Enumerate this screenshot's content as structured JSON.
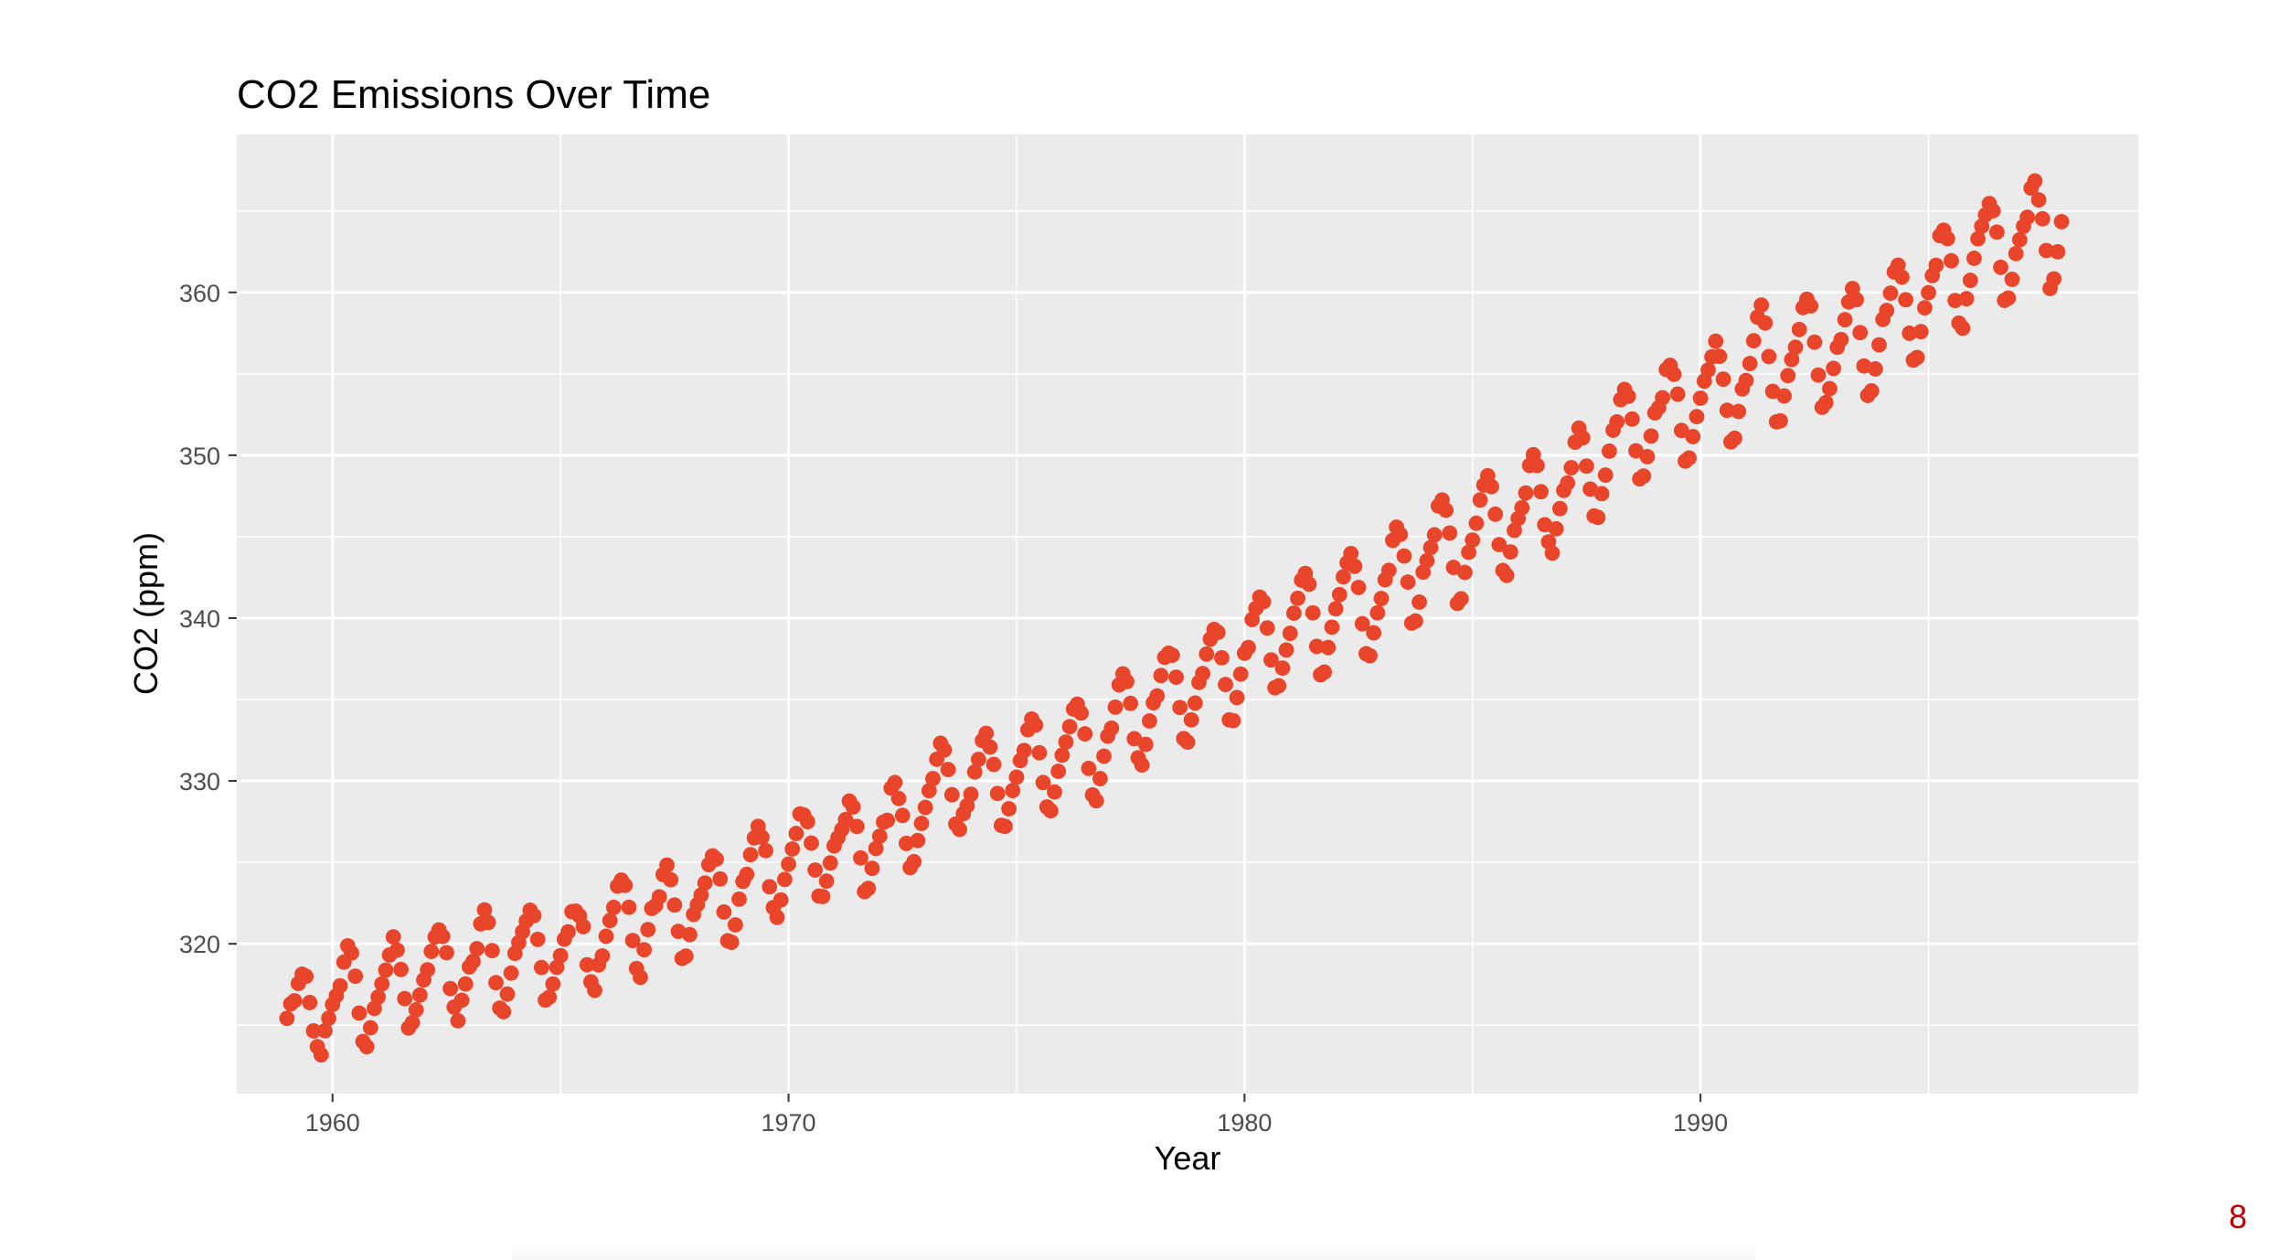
{
  "page": {
    "number": "8"
  },
  "colors": {
    "panel": "#EBEBEB",
    "grid": "#FFFFFF",
    "points": "#E8452B",
    "tick_text": "#4D4D4D",
    "title_text": "#000000",
    "page_number": "#C00000"
  },
  "chart_data": {
    "type": "scatter",
    "title": "CO2 Emissions Over Time",
    "xlabel": "Year",
    "ylabel": "CO2 (ppm)",
    "xlim": [
      1957.9,
      1999.6
    ],
    "ylim": [
      310.8,
      369.7
    ],
    "x_ticks": [
      1960,
      1970,
      1980,
      1990
    ],
    "x_tick_labels": [
      "1960",
      "1970",
      "1980",
      "1990"
    ],
    "x_minor_ticks": [
      1965,
      1975,
      1985,
      1995
    ],
    "y_ticks": [
      320,
      330,
      340,
      350,
      360
    ],
    "y_tick_labels": [
      "320",
      "330",
      "340",
      "350",
      "360"
    ],
    "y_minor_ticks": [
      315,
      325,
      335,
      345,
      355,
      365
    ],
    "grid": true,
    "legend": "none",
    "series": [
      {
        "start_year": 1959.0,
        "step": 0.083333,
        "values": [
          315.42,
          316.31,
          316.5,
          317.56,
          318.13,
          318.0,
          316.39,
          314.65,
          313.68,
          313.18,
          314.66,
          315.43,
          316.27,
          316.81,
          317.42,
          318.87,
          319.87,
          319.43,
          318.01,
          315.74,
          314.0,
          313.68,
          314.84,
          316.03,
          316.73,
          317.54,
          318.38,
          319.31,
          320.42,
          319.61,
          318.42,
          316.63,
          314.83,
          315.16,
          315.94,
          316.85,
          317.78,
          318.4,
          319.53,
          320.42,
          320.85,
          320.45,
          319.45,
          317.25,
          316.11,
          315.27,
          316.53,
          317.53,
          318.58,
          318.92,
          319.7,
          321.22,
          322.08,
          321.31,
          319.58,
          317.61,
          316.05,
          315.83,
          316.91,
          318.2,
          319.41,
          320.07,
          320.74,
          321.4,
          322.06,
          321.73,
          320.27,
          318.54,
          316.54,
          316.71,
          317.53,
          318.55,
          319.27,
          320.28,
          320.73,
          321.97,
          322.0,
          321.71,
          321.05,
          318.71,
          317.66,
          317.14,
          318.7,
          319.25,
          320.46,
          321.43,
          322.23,
          323.54,
          323.91,
          323.59,
          322.24,
          320.2,
          318.48,
          317.94,
          319.63,
          320.87,
          322.17,
          322.34,
          322.88,
          324.25,
          324.83,
          323.93,
          322.38,
          320.76,
          319.1,
          319.24,
          320.56,
          321.8,
          322.4,
          322.99,
          323.73,
          324.86,
          325.4,
          325.2,
          323.98,
          321.95,
          320.18,
          320.09,
          321.16,
          322.74,
          323.83,
          324.26,
          325.47,
          326.5,
          327.21,
          326.54,
          325.72,
          323.5,
          322.22,
          321.62,
          322.69,
          323.95,
          324.89,
          325.82,
          326.77,
          327.97,
          327.91,
          327.5,
          326.18,
          324.53,
          322.93,
          322.9,
          323.85,
          324.96,
          326.01,
          326.51,
          327.01,
          327.62,
          328.76,
          328.4,
          327.2,
          325.27,
          323.2,
          323.4,
          324.63,
          325.85,
          326.6,
          327.47,
          327.58,
          329.56,
          329.9,
          328.92,
          327.88,
          326.16,
          324.68,
          325.04,
          326.34,
          327.39,
          328.37,
          329.4,
          330.14,
          331.33,
          332.31,
          331.9,
          330.7,
          329.15,
          327.35,
          327.02,
          327.99,
          328.48,
          329.18,
          330.55,
          331.32,
          332.48,
          332.92,
          332.08,
          331.01,
          329.23,
          327.27,
          327.21,
          328.29,
          329.41,
          330.23,
          331.25,
          331.87,
          333.14,
          333.8,
          333.43,
          331.73,
          329.9,
          328.4,
          328.17,
          329.32,
          330.59,
          331.58,
          332.39,
          333.33,
          334.41,
          334.71,
          334.17,
          332.89,
          330.77,
          329.14,
          328.78,
          330.14,
          331.52,
          332.75,
          333.24,
          334.53,
          335.9,
          336.57,
          336.1,
          334.76,
          332.59,
          331.42,
          330.98,
          332.24,
          333.68,
          334.8,
          335.22,
          336.47,
          337.59,
          337.84,
          337.72,
          336.37,
          334.51,
          332.6,
          332.38,
          333.75,
          334.78,
          336.05,
          336.59,
          337.79,
          338.71,
          339.3,
          339.12,
          337.56,
          335.92,
          333.75,
          333.7,
          335.12,
          336.56,
          337.84,
          338.19,
          339.91,
          340.6,
          341.29,
          341.0,
          339.39,
          337.43,
          335.72,
          335.84,
          336.93,
          338.04,
          339.06,
          340.3,
          341.21,
          342.33,
          342.74,
          342.08,
          340.32,
          338.26,
          336.52,
          336.68,
          338.19,
          339.44,
          340.57,
          341.44,
          342.53,
          343.39,
          343.96,
          343.18,
          341.88,
          339.65,
          337.81,
          337.69,
          339.09,
          340.32,
          341.2,
          342.35,
          342.93,
          344.77,
          345.58,
          345.14,
          343.81,
          342.21,
          339.69,
          339.82,
          340.98,
          342.82,
          343.52,
          344.33,
          345.11,
          346.88,
          347.25,
          346.62,
          345.22,
          343.11,
          340.9,
          341.18,
          342.8,
          344.04,
          344.79,
          345.82,
          347.25,
          348.17,
          348.74,
          348.07,
          346.38,
          344.51,
          342.92,
          342.62,
          344.06,
          345.38,
          346.11,
          346.78,
          347.68,
          349.37,
          350.03,
          349.37,
          347.76,
          345.73,
          344.68,
          343.99,
          345.48,
          346.72,
          347.84,
          348.29,
          349.23,
          350.8,
          351.66,
          351.07,
          349.33,
          347.92,
          346.27,
          346.18,
          347.64,
          348.78,
          350.25,
          351.54,
          352.05,
          353.41,
          354.04,
          353.62,
          352.22,
          350.27,
          348.55,
          348.72,
          349.91,
          351.18,
          352.6,
          352.92,
          353.53,
          355.26,
          355.52,
          354.97,
          353.75,
          351.52,
          349.64,
          349.83,
          351.14,
          352.37,
          353.5,
          354.55,
          355.23,
          356.04,
          357.0,
          356.07,
          354.67,
          352.76,
          350.82,
          351.04,
          352.69,
          354.07,
          354.59,
          355.63,
          357.03,
          358.48,
          359.22,
          358.12,
          356.06,
          353.92,
          352.05,
          352.11,
          353.64,
          354.89,
          355.88,
          356.63,
          357.72,
          359.07,
          359.58,
          359.17,
          356.94,
          354.92,
          352.94,
          353.23,
          354.09,
          355.33,
          356.63,
          357.1,
          358.32,
          359.41,
          360.23,
          359.55,
          357.53,
          355.48,
          353.67,
          353.95,
          355.3,
          356.78,
          358.34,
          358.89,
          359.95,
          361.25,
          361.67,
          360.94,
          359.55,
          357.49,
          355.84,
          356.0,
          357.59,
          359.05,
          359.98,
          361.03,
          361.66,
          363.48,
          363.82,
          363.3,
          361.94,
          359.5,
          358.11,
          357.8,
          359.61,
          360.74,
          362.09,
          363.29,
          364.06,
          364.76,
          365.45,
          365.01,
          363.7,
          361.54,
          359.51,
          359.65,
          360.8,
          362.38,
          363.23,
          364.06,
          364.61,
          366.4,
          366.84,
          365.68,
          364.52,
          362.57,
          360.24,
          360.83,
          362.49,
          364.34
        ]
      }
    ]
  }
}
